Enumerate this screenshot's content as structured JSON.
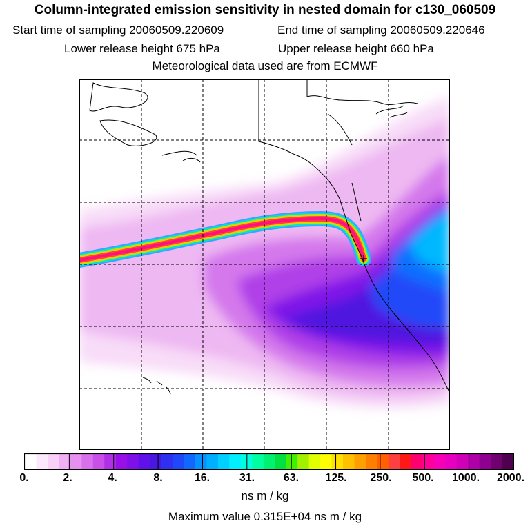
{
  "title": "Column-integrated emission sensitivity in nested domain for c130_060509",
  "start_label": "Start time of sampling 20060509.220609",
  "end_label": "End time of sampling 20060509.220646",
  "lower_label": "Lower release height  675 hPa",
  "upper_label": "Upper release height  660 hPa",
  "met_label": "Meteorological data used are from ECMWF",
  "colorbar": {
    "tick_labels": [
      "0.",
      "2.",
      "4.",
      "8.",
      "16.",
      "31.",
      "63.",
      "125.",
      "250.",
      "500.",
      "1000.",
      "2000."
    ],
    "colors": [
      "#ffffff",
      "#fce8fc",
      "#f8d0f8",
      "#f0b0f4",
      "#e890f0",
      "#d870ec",
      "#c850e8",
      "#b030e8",
      "#9810e8",
      "#8010e8",
      "#6010e8",
      "#4818e0",
      "#3030f0",
      "#2048f8",
      "#1068ff",
      "#0890ff",
      "#00b0ff",
      "#00d0ff",
      "#00f0ff",
      "#00ffe0",
      "#00ffa0",
      "#00f070",
      "#00e040",
      "#40f000",
      "#a0f000",
      "#e0ff00",
      "#ffff00",
      "#ffe000",
      "#ffc000",
      "#ffa000",
      "#ff8000",
      "#ff6000",
      "#ff4040",
      "#ff1818",
      "#ff0070",
      "#ff0098",
      "#f800b8",
      "#e800c0",
      "#d000b8",
      "#b000a8",
      "#900090",
      "#700070",
      "#500050"
    ]
  },
  "units": "ns m / kg",
  "max_value_label": "Maximum value  0.315E+04 ns m / kg",
  "release_point": "release-location"
}
